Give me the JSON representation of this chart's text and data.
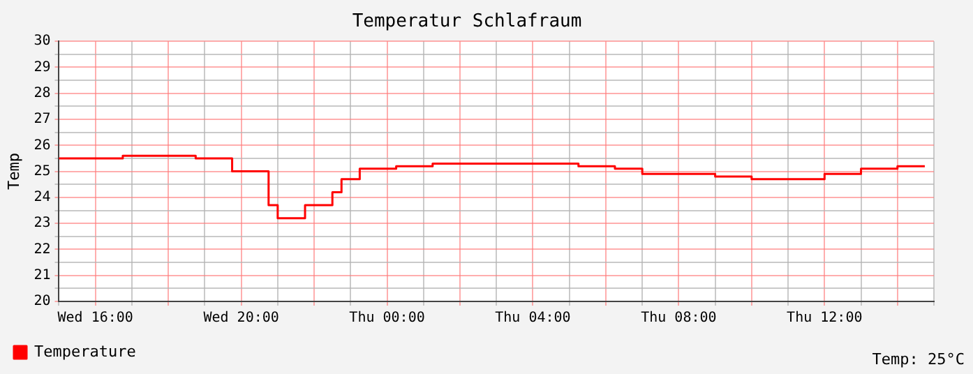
{
  "chart_data": {
    "type": "step",
    "title": "Temperatur Schlafraum",
    "ylabel": "Temp",
    "categories": [
      null,
      null,
      null,
      null,
      "Wed 16:00",
      null,
      null,
      null,
      null,
      null,
      null,
      null,
      null,
      null,
      null,
      null,
      null,
      null,
      null,
      null,
      "Wed 20:00",
      null,
      null,
      null,
      null,
      null,
      null,
      null,
      null,
      null,
      null,
      null,
      null,
      null,
      null,
      null,
      "Thu 00:00",
      null,
      null,
      null,
      null,
      null,
      null,
      null,
      null,
      null,
      null,
      null,
      null,
      null,
      null,
      null,
      "Thu 04:00",
      null,
      null,
      null,
      null,
      null,
      null,
      null,
      null,
      null,
      null,
      null,
      null,
      null,
      null,
      null,
      "Thu 08:00",
      null,
      null,
      null,
      null,
      null,
      null,
      null,
      null,
      null,
      null,
      null,
      null,
      null,
      null,
      null,
      "Thu 12:00",
      null,
      null,
      null,
      null,
      null,
      null,
      null,
      null,
      null,
      null,
      null,
      null
    ],
    "series": [
      {
        "name": "Temperature",
        "color": "#ff0000",
        "values": [
          25.5,
          25.5,
          25.5,
          25.5,
          25.5,
          25.5,
          25.5,
          25.6,
          25.6,
          25.6,
          25.6,
          25.6,
          25.6,
          25.6,
          25.6,
          25.5,
          25.5,
          25.5,
          25.5,
          25.0,
          25.0,
          25.0,
          25.0,
          23.7,
          23.2,
          23.2,
          23.2,
          23.7,
          23.7,
          23.7,
          24.2,
          24.7,
          24.7,
          25.1,
          25.1,
          25.1,
          25.1,
          25.2,
          25.2,
          25.2,
          25.2,
          25.3,
          25.3,
          25.3,
          25.3,
          25.3,
          25.3,
          25.3,
          25.3,
          25.3,
          25.3,
          25.3,
          25.3,
          25.3,
          25.3,
          25.3,
          25.3,
          25.2,
          25.2,
          25.2,
          25.2,
          25.1,
          25.1,
          25.1,
          24.9,
          24.9,
          24.9,
          24.9,
          24.9,
          24.9,
          24.9,
          24.9,
          24.8,
          24.8,
          24.8,
          24.8,
          24.7,
          24.7,
          24.7,
          24.7,
          24.7,
          24.7,
          24.7,
          24.7,
          24.9,
          24.9,
          24.9,
          24.9,
          25.1,
          25.1,
          25.1,
          25.1,
          25.2,
          25.2,
          25.2,
          25.2,
          null
        ]
      }
    ],
    "ylim": [
      20,
      30
    ],
    "yticks": [
      20,
      {
        "value": 20.5,
        "label": null
      },
      21,
      {
        "value": 21.5,
        "label": null
      },
      22,
      {
        "value": 22.5,
        "label": null
      },
      23,
      {
        "value": 23.5,
        "label": null
      },
      24,
      {
        "value": 24.5,
        "label": null
      },
      25,
      {
        "value": 25.5,
        "label": null
      },
      26,
      {
        "value": 26.5,
        "label": null
      },
      27,
      {
        "value": 27.5,
        "label": null
      },
      28,
      {
        "value": 28.5,
        "label": null
      },
      29,
      {
        "value": 29.5,
        "label": null
      },
      30
    ],
    "grid": true,
    "legend": "bottom left",
    "marker": "none",
    "line_style": "solid",
    "annotations": [
      "Temp: 25°C"
    ]
  }
}
